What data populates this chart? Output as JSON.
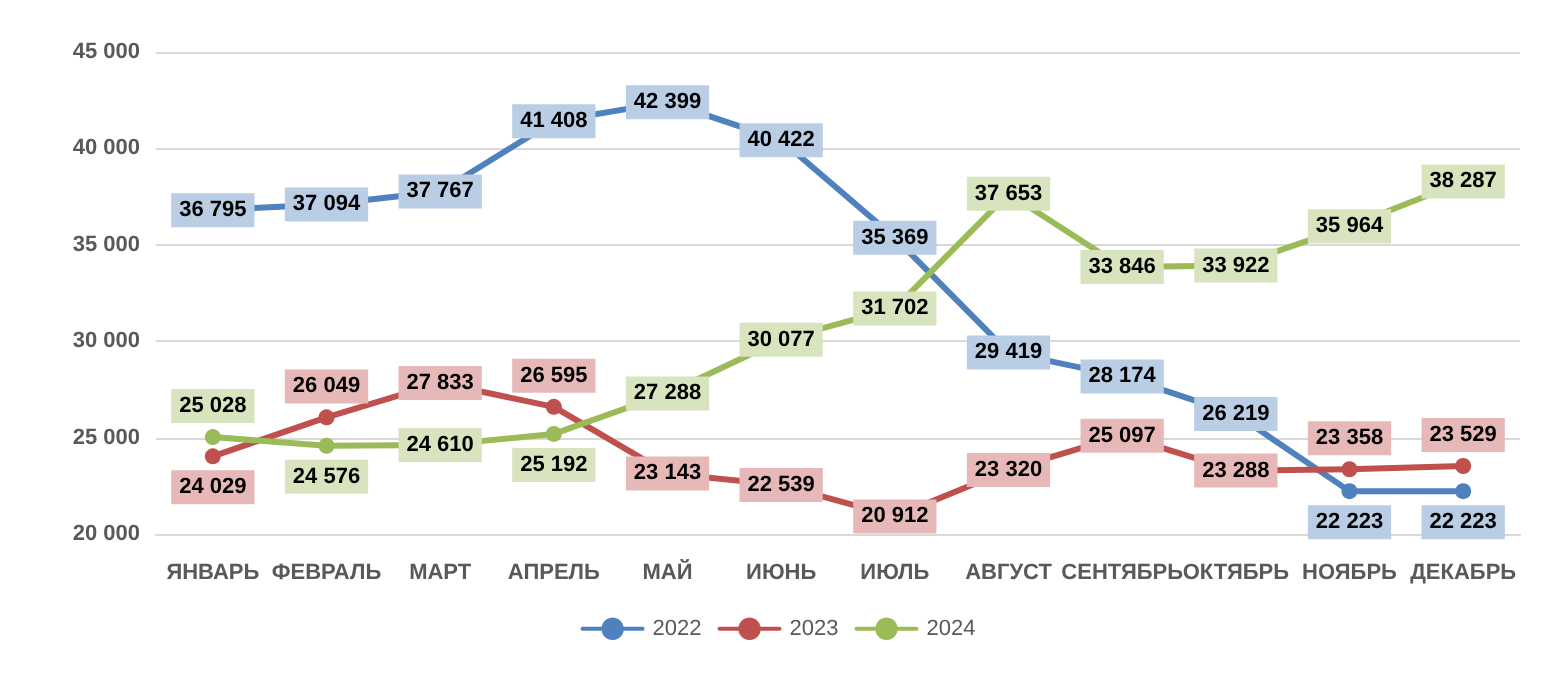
{
  "chart_data": {
    "type": "line",
    "categories": [
      "ЯНВАРЬ",
      "ФЕВРАЛЬ",
      "МАРТ",
      "АПРЕЛЬ",
      "МАЙ",
      "ИЮНЬ",
      "ИЮЛЬ",
      "АВГУСТ",
      "СЕНТЯБРЬ",
      "ОКТЯБРЬ",
      "НОЯБРЬ",
      "ДЕКАБРЬ"
    ],
    "series": [
      {
        "name": "2022",
        "color": "#4f81bd",
        "values": [
          36795,
          37094,
          37767,
          41408,
          42399,
          40422,
          35369,
          29419,
          28174,
          26219,
          22223,
          22223
        ],
        "value_labels": [
          "36 795",
          "37 094",
          "37 767",
          "41 408",
          "42 399",
          "40 422",
          "35 369",
          "29 419",
          "28 174",
          "26 219",
          "22 223",
          "22 223"
        ]
      },
      {
        "name": "2023",
        "color": "#c0504d",
        "values": [
          24029,
          26049,
          27833,
          26595,
          23143,
          22539,
          20912,
          23320,
          25097,
          23288,
          23358,
          23529
        ],
        "value_labels": [
          "24 029",
          "26 049",
          "27 833",
          "26 595",
          "23 143",
          "22 539",
          "20 912",
          "23 320",
          "25 097",
          "23 288",
          "23 358",
          "23 529"
        ]
      },
      {
        "name": "2024",
        "color": "#9bbb59",
        "values": [
          25028,
          24576,
          24610,
          25192,
          27288,
          30077,
          31702,
          37653,
          33846,
          33922,
          35964,
          38287
        ],
        "value_labels": [
          "25 028",
          "24 576",
          "24 610",
          "25 192",
          "27 288",
          "30 077",
          "31 702",
          "37 653",
          "33 846",
          "33 922",
          "35 964",
          "38 287"
        ]
      }
    ],
    "ylim": [
      20000,
      45000
    ],
    "yticks": [
      {
        "value": 20000,
        "label": "20 000"
      },
      {
        "value": 25000,
        "label": "25 000"
      },
      {
        "value": 30000,
        "label": "30 000"
      },
      {
        "value": 35000,
        "label": "35 000"
      },
      {
        "value": 40000,
        "label": "40 000"
      },
      {
        "value": 45000,
        "label": "45 000"
      }
    ],
    "grid": "y",
    "legend": "bottom",
    "marker": "circle",
    "line_style": "solid"
  }
}
